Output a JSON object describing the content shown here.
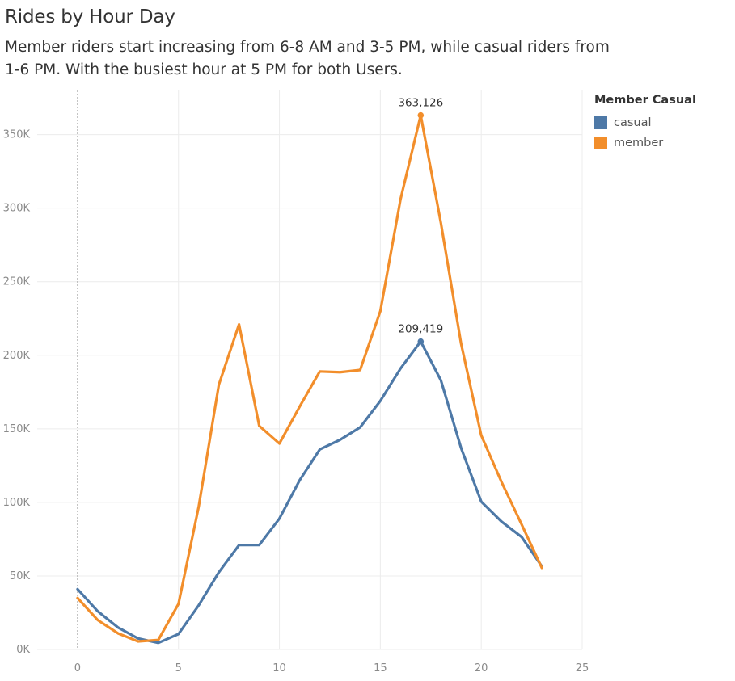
{
  "chart_data": {
    "type": "line",
    "title": "Rides by Hour Day",
    "subtitle": "Member riders start increasing from 6-8 AM and 3-5 PM, while casual riders from 1-6 PM. With the busiest hour at 5 PM for both Users.",
    "xlabel": "",
    "ylabel": "",
    "x": [
      0,
      1,
      2,
      3,
      4,
      5,
      6,
      7,
      8,
      9,
      10,
      11,
      12,
      13,
      14,
      15,
      16,
      17,
      18,
      19,
      20,
      21,
      22,
      23
    ],
    "xlim": [
      -2,
      25
    ],
    "ylim": [
      0,
      380000
    ],
    "x_ticks": [
      0,
      5,
      10,
      15,
      20,
      25
    ],
    "x_tick_labels": [
      "0",
      "5",
      "10",
      "15",
      "20",
      "25"
    ],
    "y_ticks": [
      0,
      50000,
      100000,
      150000,
      200000,
      250000,
      300000,
      350000
    ],
    "y_tick_labels": [
      "0K",
      "50K",
      "100K",
      "150K",
      "200K",
      "250K",
      "300K",
      "350K"
    ],
    "grid": true,
    "legend": {
      "title": "Member Casual",
      "position": "right"
    },
    "series": [
      {
        "name": "casual",
        "color": "#4e79a7",
        "values": [
          41000,
          26000,
          15000,
          7500,
          4500,
          10500,
          30000,
          52500,
          71000,
          71000,
          89000,
          115000,
          136000,
          142500,
          151000,
          169000,
          191000,
          209419,
          183000,
          137000,
          100500,
          87000,
          76500,
          56500
        ],
        "peak_label": "209,419"
      },
      {
        "name": "member",
        "color": "#f28e2b",
        "values": [
          35000,
          20000,
          11000,
          5500,
          6500,
          31000,
          97000,
          180000,
          221000,
          152000,
          140000,
          165000,
          189000,
          188500,
          190000,
          230000,
          306000,
          363126,
          290000,
          208000,
          145500,
          114000,
          85000,
          55500
        ],
        "peak_label": "363,126"
      }
    ]
  }
}
